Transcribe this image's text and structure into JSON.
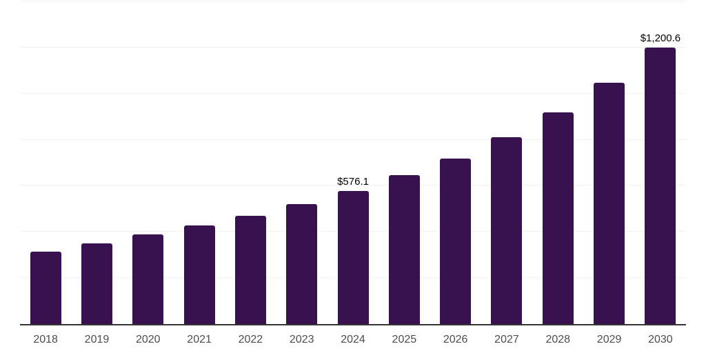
{
  "chart": {
    "background_color": "#ffffff",
    "bar_color": "#38124E",
    "axis_color": "#333333",
    "grid_color": "#f2f2f2",
    "tick_label_color": "#4d4d4d",
    "data_label_color": "#000000"
  },
  "chart_data": {
    "type": "bar",
    "title": "",
    "xlabel": "",
    "ylabel": "",
    "categories": [
      "2018",
      "2019",
      "2020",
      "2021",
      "2022",
      "2023",
      "2024",
      "2025",
      "2026",
      "2027",
      "2028",
      "2029",
      "2030"
    ],
    "values": [
      315,
      351,
      388,
      429,
      470,
      522,
      576.1,
      645,
      719,
      810,
      918,
      1046,
      1200.6
    ],
    "data_labels": [
      {
        "category": "2024",
        "text": "$576.1"
      },
      {
        "category": "2030",
        "text": "$1,200.6"
      }
    ],
    "ylim": [
      0,
      1400
    ],
    "grid": true,
    "gridline_step": 200,
    "legend": false,
    "y_axis_tick_labels_visible": false
  }
}
